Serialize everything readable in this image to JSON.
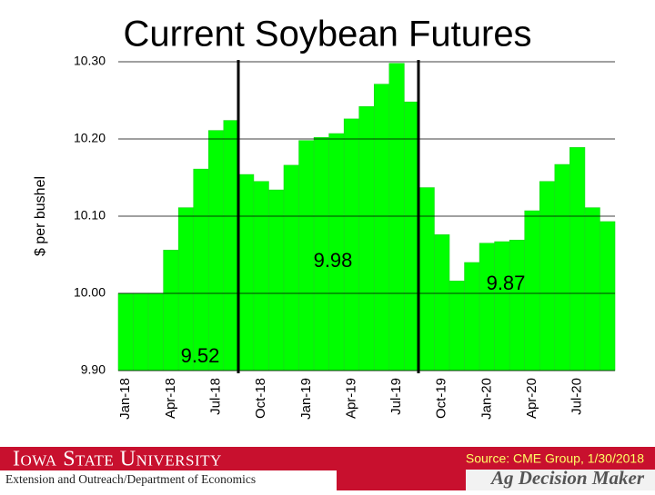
{
  "chart_data": {
    "type": "bar",
    "title": "Current Soybean Futures",
    "y_label": "$ per bushel",
    "categories": [
      "Jan-18",
      null,
      null,
      "Apr-18",
      null,
      null,
      "Jul-18",
      null,
      null,
      "Oct-18",
      null,
      null,
      "Jan-19",
      null,
      null,
      "Apr-19",
      null,
      null,
      "Jul-19",
      null,
      null,
      "Oct-19",
      null,
      null,
      "Jan-20",
      null,
      null,
      "Apr-20",
      null,
      null,
      "Jul-20",
      null,
      null
    ],
    "values": [
      10.0,
      10.0,
      10.0,
      10.056,
      10.111,
      10.161,
      10.211,
      10.224,
      10.154,
      10.145,
      10.134,
      10.166,
      10.198,
      10.202,
      10.207,
      10.226,
      10.242,
      10.271,
      10.298,
      10.248,
      10.137,
      10.076,
      10.016,
      10.04,
      10.065,
      10.067,
      10.069,
      10.107,
      10.145,
      10.167,
      10.189,
      10.111,
      10.093
    ],
    "color": "#00ff00",
    "ylim": [
      9.9,
      10.3
    ],
    "yticks": [
      {
        "value": 9.9,
        "label": "9.90"
      },
      {
        "value": 10.0,
        "label": "10.00"
      },
      {
        "value": 10.1,
        "label": "10.10"
      },
      {
        "value": 10.2,
        "label": "10.20"
      },
      {
        "value": 10.3,
        "label": "10.30"
      }
    ],
    "grid": true,
    "annotations": [
      "9.52",
      "9.98",
      "9.87"
    ]
  },
  "footer": {
    "university": "Iowa State University",
    "department": "Extension and Outreach/Department of Economics",
    "source": "Source: CME Group, 1/30/2018",
    "brand": "Ag Decision Maker"
  }
}
